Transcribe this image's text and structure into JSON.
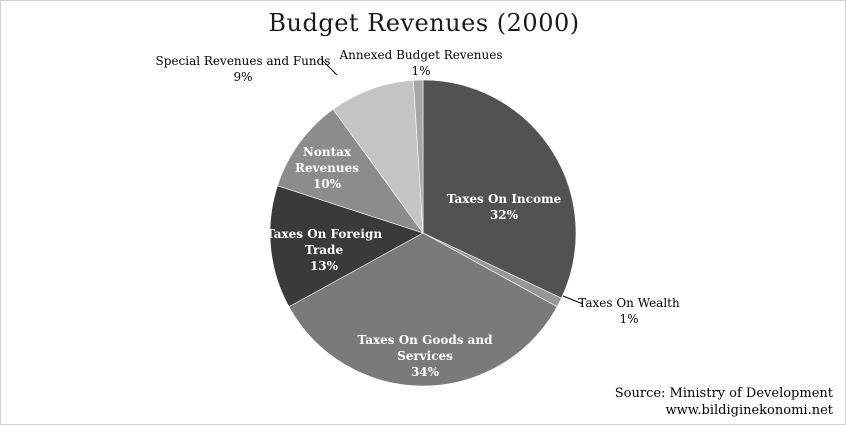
{
  "chart_data": {
    "type": "pie",
    "title": "Budget Revenues (2000)",
    "slices": [
      {
        "label": "Taxes On Income",
        "value": 32,
        "value_label": "32%",
        "color": "#525252",
        "label_position": "inside"
      },
      {
        "label": "Taxes On Wealth",
        "value": 1,
        "value_label": "1%",
        "color": "#969696",
        "label_position": "outside-right"
      },
      {
        "label": "Taxes On Goods and Services",
        "value": 34,
        "value_label": "34%",
        "color": "#7a7a7a",
        "label_position": "inside"
      },
      {
        "label": "Taxes On Foreign Trade",
        "value": 13,
        "value_label": "13%",
        "color": "#3a3a3a",
        "label_position": "inside"
      },
      {
        "label": "Nontax Revenues",
        "value": 10,
        "value_label": "10%",
        "color": "#8c8c8c",
        "label_position": "inside"
      },
      {
        "label": "Special Revenues and Funds",
        "value": 9,
        "value_label": "9%",
        "color": "#c4c4c4",
        "label_position": "outside-top-left"
      },
      {
        "label": "Annexed Budget Revenues",
        "value": 1,
        "value_label": "1%",
        "color": "#a6a6a6",
        "label_position": "outside-top"
      }
    ]
  },
  "source": {
    "line1": "Source: Ministry of Development",
    "line2": "www.bildiginekonomi.net"
  }
}
